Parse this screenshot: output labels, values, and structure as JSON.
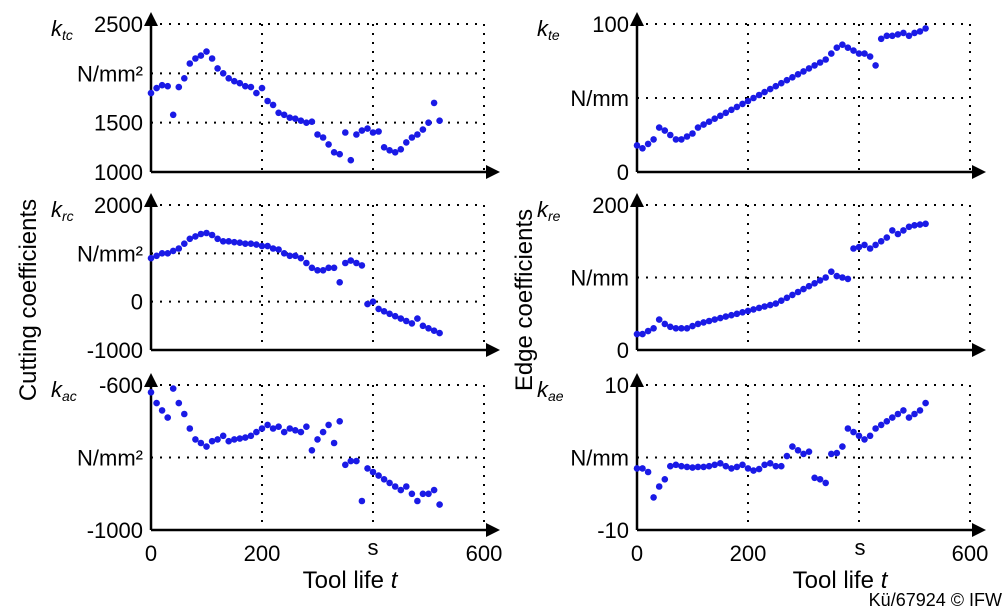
{
  "left_axis_label": "Cutting coefficients",
  "right_axis_label": "Edge coefficients",
  "x_axis_label": "Tool life",
  "x_axis_symbol": "t",
  "x_tick_labels": [
    "0",
    "200",
    "s",
    "600"
  ],
  "copyright": "Kü/67924 © IFW",
  "colors": {
    "points": "#1a1ae6",
    "axes": "#000000"
  },
  "chart_data": [
    {
      "id": "ktc",
      "type": "scatter",
      "symbol_main": "k",
      "symbol_sub": "tc",
      "unit": "N/mm²",
      "x_ticks": [
        0,
        200,
        400,
        600
      ],
      "ylim": [
        1000,
        2500
      ],
      "y_tick_labels": [
        {
          "v": 2500,
          "t": "2500"
        },
        {
          "v": 1500,
          "t": "1500"
        },
        {
          "v": 1000,
          "t": "1000"
        }
      ],
      "grid_y": [
        2500,
        2000,
        1500
      ],
      "unit_y": 2000,
      "x": [
        0,
        10,
        20,
        30,
        40,
        50,
        60,
        70,
        80,
        90,
        100,
        110,
        120,
        130,
        140,
        150,
        160,
        170,
        180,
        190,
        200,
        210,
        220,
        230,
        240,
        250,
        260,
        270,
        280,
        290,
        300,
        310,
        320,
        330,
        340,
        350,
        360,
        370,
        380,
        390,
        400,
        410,
        420,
        430,
        440,
        450,
        460,
        470,
        480,
        490,
        500,
        510,
        520
      ],
      "y": [
        1800,
        1850,
        1880,
        1870,
        1580,
        1860,
        1950,
        2100,
        2150,
        2180,
        2220,
        2150,
        2050,
        2000,
        1950,
        1920,
        1900,
        1870,
        1860,
        1800,
        1850,
        1720,
        1680,
        1600,
        1580,
        1550,
        1540,
        1520,
        1500,
        1510,
        1380,
        1350,
        1280,
        1200,
        1180,
        1400,
        1120,
        1380,
        1420,
        1440,
        1400,
        1410,
        1250,
        1220,
        1200,
        1230,
        1300,
        1350,
        1380,
        1430,
        1500,
        1700,
        1520
      ]
    },
    {
      "id": "kte",
      "type": "scatter",
      "symbol_main": "k",
      "symbol_sub": "te",
      "unit": "N/mm",
      "x_ticks": [
        0,
        200,
        400,
        600
      ],
      "ylim": [
        0,
        100
      ],
      "y_tick_labels": [
        {
          "v": 100,
          "t": "100"
        },
        {
          "v": 0,
          "t": "0"
        }
      ],
      "grid_y": [
        100,
        50
      ],
      "unit_y": 50,
      "x": [
        0,
        10,
        20,
        30,
        40,
        50,
        60,
        70,
        80,
        90,
        100,
        110,
        120,
        130,
        140,
        150,
        160,
        170,
        180,
        190,
        200,
        210,
        220,
        230,
        240,
        250,
        260,
        270,
        280,
        290,
        300,
        310,
        320,
        330,
        340,
        350,
        360,
        370,
        380,
        390,
        400,
        410,
        420,
        430,
        440,
        450,
        460,
        470,
        480,
        490,
        500,
        510,
        520
      ],
      "y": [
        18,
        16,
        19,
        22,
        30,
        28,
        25,
        22,
        22,
        24,
        26,
        30,
        32,
        34,
        36,
        38,
        40,
        42,
        44,
        46,
        48,
        50,
        52,
        54,
        56,
        58,
        60,
        62,
        64,
        66,
        68,
        70,
        72,
        74,
        76,
        80,
        84,
        86,
        84,
        82,
        80,
        80,
        78,
        72,
        90,
        92,
        92,
        93,
        94,
        92,
        94,
        95,
        97
      ]
    },
    {
      "id": "krc",
      "type": "scatter",
      "symbol_main": "k",
      "symbol_sub": "rc",
      "unit": "N/mm²",
      "x_ticks": [
        0,
        200,
        400,
        600
      ],
      "ylim": [
        -1000,
        2000
      ],
      "y_tick_labels": [
        {
          "v": 2000,
          "t": "2000"
        },
        {
          "v": 0,
          "t": "0"
        },
        {
          "v": -1000,
          "t": "-1000"
        }
      ],
      "grid_y": [
        2000,
        1000,
        0
      ],
      "unit_y": 1000,
      "x": [
        0,
        10,
        20,
        30,
        40,
        50,
        60,
        70,
        80,
        90,
        100,
        110,
        120,
        130,
        140,
        150,
        160,
        170,
        180,
        190,
        200,
        210,
        220,
        230,
        240,
        250,
        260,
        270,
        280,
        290,
        300,
        310,
        320,
        330,
        340,
        350,
        360,
        370,
        380,
        390,
        400,
        410,
        420,
        430,
        440,
        450,
        460,
        470,
        480,
        490,
        500,
        510,
        520
      ],
      "y": [
        900,
        950,
        1000,
        1000,
        1050,
        1100,
        1200,
        1300,
        1350,
        1400,
        1420,
        1380,
        1300,
        1250,
        1250,
        1230,
        1220,
        1200,
        1200,
        1180,
        1150,
        1150,
        1100,
        1080,
        1000,
        950,
        950,
        900,
        800,
        700,
        650,
        650,
        700,
        700,
        400,
        800,
        850,
        800,
        750,
        -50,
        0,
        -150,
        -200,
        -250,
        -300,
        -350,
        -400,
        -450,
        -350,
        -500,
        -550,
        -600,
        -650
      ]
    },
    {
      "id": "kre",
      "type": "scatter",
      "symbol_main": "k",
      "symbol_sub": "re",
      "unit": "N/mm",
      "x_ticks": [
        0,
        200,
        400,
        600
      ],
      "ylim": [
        0,
        200
      ],
      "y_tick_labels": [
        {
          "v": 200,
          "t": "200"
        },
        {
          "v": 0,
          "t": "0"
        }
      ],
      "grid_y": [
        200,
        100
      ],
      "unit_y": 100,
      "x": [
        0,
        10,
        20,
        30,
        40,
        50,
        60,
        70,
        80,
        90,
        100,
        110,
        120,
        130,
        140,
        150,
        160,
        170,
        180,
        190,
        200,
        210,
        220,
        230,
        240,
        250,
        260,
        270,
        280,
        290,
        300,
        310,
        320,
        330,
        340,
        350,
        360,
        370,
        380,
        390,
        400,
        410,
        420,
        430,
        440,
        450,
        460,
        470,
        480,
        490,
        500,
        510,
        520
      ],
      "y": [
        22,
        22,
        26,
        30,
        42,
        36,
        32,
        30,
        30,
        30,
        33,
        36,
        38,
        40,
        42,
        44,
        46,
        48,
        50,
        52,
        54,
        56,
        58,
        60,
        62,
        64,
        68,
        72,
        76,
        80,
        84,
        88,
        92,
        96,
        100,
        108,
        102,
        100,
        98,
        140,
        142,
        145,
        140,
        145,
        150,
        155,
        165,
        160,
        165,
        170,
        172,
        173,
        174
      ]
    },
    {
      "id": "kac",
      "type": "scatter",
      "symbol_main": "k",
      "symbol_sub": "ac",
      "unit": "N/mm²",
      "x_ticks": [
        0,
        200,
        400,
        600
      ],
      "ylim": [
        -1000,
        -600
      ],
      "y_tick_labels": [
        {
          "v": -600,
          "t": "-600"
        },
        {
          "v": -1000,
          "t": "-1000"
        }
      ],
      "grid_y": [
        -600,
        -800
      ],
      "unit_y": -800,
      "x": [
        0,
        10,
        20,
        30,
        40,
        50,
        60,
        70,
        80,
        90,
        100,
        110,
        120,
        130,
        140,
        150,
        160,
        170,
        180,
        190,
        200,
        210,
        220,
        230,
        240,
        250,
        260,
        270,
        280,
        290,
        300,
        310,
        320,
        330,
        340,
        350,
        360,
        370,
        380,
        390,
        400,
        410,
        420,
        430,
        440,
        450,
        460,
        470,
        480,
        490,
        500,
        510,
        520
      ],
      "y": [
        -620,
        -650,
        -670,
        -690,
        -610,
        -650,
        -680,
        -720,
        -750,
        -760,
        -770,
        -755,
        -750,
        -740,
        -755,
        -750,
        -748,
        -745,
        -740,
        -730,
        -720,
        -710,
        -720,
        -715,
        -730,
        -720,
        -725,
        -730,
        -715,
        -780,
        -750,
        -730,
        -710,
        -760,
        -700,
        -820,
        -810,
        -810,
        -920,
        -830,
        -840,
        -850,
        -860,
        -870,
        -880,
        -890,
        -880,
        -900,
        -920,
        -900,
        -900,
        -890,
        -930
      ]
    },
    {
      "id": "kae",
      "type": "scatter",
      "symbol_main": "k",
      "symbol_sub": "ae",
      "unit": "N/mm",
      "x_ticks": [
        0,
        200,
        400,
        600
      ],
      "ylim": [
        -10,
        10
      ],
      "y_tick_labels": [
        {
          "v": 10,
          "t": "10"
        },
        {
          "v": -10,
          "t": "-10"
        }
      ],
      "grid_y": [
        10,
        0
      ],
      "unit_y": 0,
      "x": [
        0,
        10,
        20,
        30,
        40,
        50,
        60,
        70,
        80,
        90,
        100,
        110,
        120,
        130,
        140,
        150,
        160,
        170,
        180,
        190,
        200,
        210,
        220,
        230,
        240,
        250,
        260,
        270,
        280,
        290,
        300,
        310,
        320,
        330,
        340,
        350,
        360,
        370,
        380,
        390,
        400,
        410,
        420,
        430,
        440,
        450,
        460,
        470,
        480,
        490,
        500,
        510,
        520
      ],
      "y": [
        -1.5,
        -1.5,
        -2.0,
        -5.5,
        -4.0,
        -3.0,
        -1.2,
        -1.0,
        -1.2,
        -1.3,
        -1.4,
        -1.3,
        -1.3,
        -1.2,
        -1.0,
        -0.8,
        -1.2,
        -1.5,
        -1.3,
        -1.0,
        -1.5,
        -1.8,
        -1.6,
        -1.0,
        -0.8,
        -1.2,
        -1.2,
        0.2,
        1.5,
        1.0,
        0.5,
        0.8,
        -2.8,
        -3.0,
        -3.5,
        0.5,
        0.6,
        1.5,
        4.0,
        3.5,
        3.0,
        2.5,
        3.0,
        4.0,
        4.5,
        5.0,
        5.5,
        6.0,
        6.5,
        5.5,
        6.0,
        6.5,
        7.5
      ]
    }
  ]
}
